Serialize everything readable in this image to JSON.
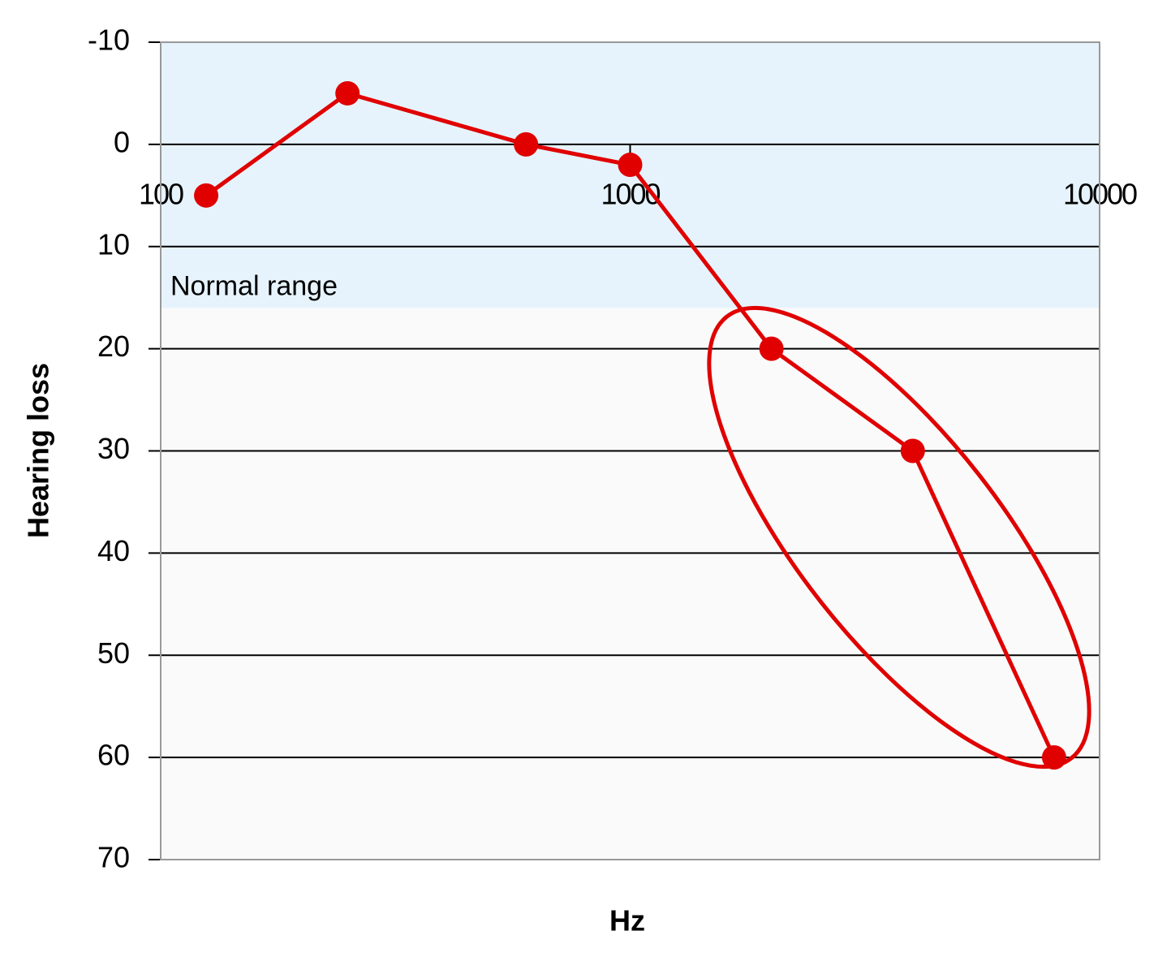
{
  "chart_data": {
    "type": "line",
    "x_label": "Hz",
    "y_label": "Hearing loss",
    "x_scale": "log",
    "xlim": [
      100,
      10000
    ],
    "xticks": [
      100,
      1000,
      10000
    ],
    "ylim": [
      -10,
      70
    ],
    "y_reversed": true,
    "yticks": [
      -10,
      0,
      10,
      20,
      30,
      40,
      50,
      60,
      70
    ],
    "grid": true,
    "band": {
      "label": "Normal range",
      "range": [
        -10,
        16
      ],
      "color": "#e6f3fc"
    },
    "series": [
      {
        "color": "#e00000",
        "x": [
          125,
          250,
          600,
          1000,
          2000,
          4000,
          8000
        ],
        "values": [
          5,
          -5,
          0,
          2,
          20,
          30,
          60
        ]
      }
    ]
  }
}
